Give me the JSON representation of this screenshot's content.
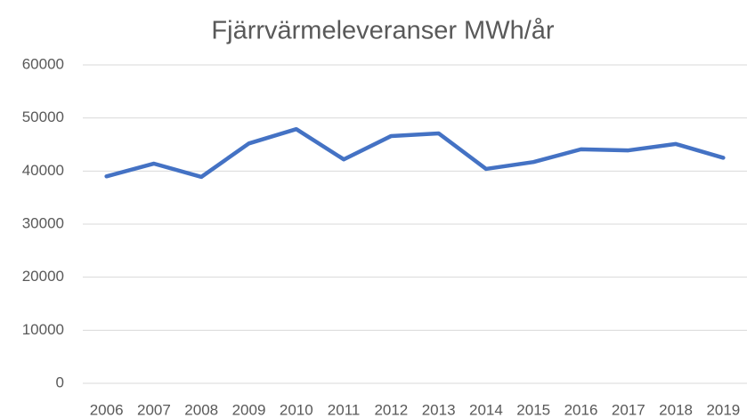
{
  "chart_data": {
    "type": "line",
    "title": "Fjärrvärmeleveranser MWh/år",
    "categories": [
      "2006",
      "2007",
      "2008",
      "2009",
      "2010",
      "2011",
      "2012",
      "2013",
      "2014",
      "2015",
      "2016",
      "2017",
      "2018",
      "2019"
    ],
    "series": [
      {
        "name": "Fjärrvärmeleveranser",
        "color": "#4472c4",
        "values": [
          39000,
          41400,
          38900,
          45200,
          47900,
          42200,
          46600,
          47100,
          40400,
          41700,
          44100,
          43900,
          45100,
          42500
        ]
      }
    ],
    "ylim": [
      0,
      60000
    ],
    "yticks": [
      0,
      10000,
      20000,
      30000,
      40000,
      50000,
      60000
    ],
    "grid": true
  }
}
